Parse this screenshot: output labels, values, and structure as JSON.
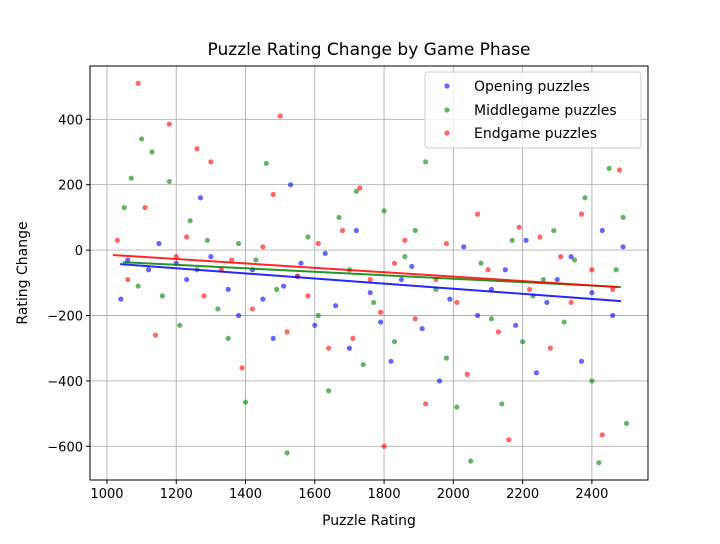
{
  "chart_data": {
    "type": "scatter",
    "title": "Puzzle Rating Change by Game Phase",
    "xlabel": "Puzzle Rating",
    "ylabel": "Rating Change",
    "xlim": [
      951,
      2562
    ],
    "ylim": [
      -703,
      563
    ],
    "xticks": [
      1000,
      1200,
      1400,
      1600,
      1800,
      2000,
      2200,
      2400
    ],
    "yticks": [
      -600,
      -400,
      -200,
      0,
      200,
      400
    ],
    "xtick_labels": [
      "1000",
      "1200",
      "1400",
      "1600",
      "1800",
      "2000",
      "2200",
      "2400"
    ],
    "ytick_labels": [
      "−600",
      "−400",
      "−200",
      "0",
      "200",
      "400"
    ],
    "grid": true,
    "legend_position": "top-right",
    "series": [
      {
        "name": "Opening puzzles",
        "color": "#0000ff",
        "points": [
          [
            1040,
            -150
          ],
          [
            1060,
            -30
          ],
          [
            1120,
            -60
          ],
          [
            1150,
            20
          ],
          [
            1200,
            -40
          ],
          [
            1230,
            -90
          ],
          [
            1270,
            160
          ],
          [
            1300,
            -20
          ],
          [
            1350,
            -120
          ],
          [
            1380,
            -200
          ],
          [
            1420,
            -60
          ],
          [
            1450,
            -150
          ],
          [
            1480,
            -270
          ],
          [
            1510,
            -110
          ],
          [
            1530,
            200
          ],
          [
            1560,
            -40
          ],
          [
            1600,
            -230
          ],
          [
            1630,
            -10
          ],
          [
            1660,
            -170
          ],
          [
            1700,
            -300
          ],
          [
            1720,
            60
          ],
          [
            1760,
            -130
          ],
          [
            1790,
            -220
          ],
          [
            1820,
            -340
          ],
          [
            1850,
            -90
          ],
          [
            1880,
            -50
          ],
          [
            1910,
            -240
          ],
          [
            1960,
            -400
          ],
          [
            1990,
            -150
          ],
          [
            2030,
            10
          ],
          [
            2070,
            -200
          ],
          [
            2110,
            -120
          ],
          [
            2150,
            -60
          ],
          [
            2180,
            -230
          ],
          [
            2210,
            30
          ],
          [
            2240,
            -375
          ],
          [
            2270,
            -160
          ],
          [
            2300,
            -90
          ],
          [
            2340,
            -20
          ],
          [
            2370,
            -340
          ],
          [
            2400,
            -130
          ],
          [
            2430,
            60
          ],
          [
            2460,
            -200
          ],
          [
            2490,
            10
          ]
        ]
      },
      {
        "name": "Middlegame puzzles",
        "color": "#008000",
        "points": [
          [
            1050,
            130
          ],
          [
            1070,
            220
          ],
          [
            1090,
            -110
          ],
          [
            1100,
            340
          ],
          [
            1130,
            300
          ],
          [
            1160,
            -140
          ],
          [
            1180,
            210
          ],
          [
            1210,
            -230
          ],
          [
            1240,
            90
          ],
          [
            1260,
            -60
          ],
          [
            1290,
            30
          ],
          [
            1320,
            -180
          ],
          [
            1350,
            -270
          ],
          [
            1380,
            20
          ],
          [
            1400,
            -465
          ],
          [
            1430,
            -30
          ],
          [
            1460,
            265
          ],
          [
            1490,
            -120
          ],
          [
            1520,
            -620
          ],
          [
            1550,
            -80
          ],
          [
            1580,
            40
          ],
          [
            1610,
            -200
          ],
          [
            1640,
            -430
          ],
          [
            1670,
            100
          ],
          [
            1700,
            -60
          ],
          [
            1720,
            180
          ],
          [
            1740,
            -350
          ],
          [
            1770,
            -160
          ],
          [
            1800,
            120
          ],
          [
            1830,
            -280
          ],
          [
            1860,
            -20
          ],
          [
            1890,
            60
          ],
          [
            1920,
            270
          ],
          [
            1950,
            -120
          ],
          [
            1980,
            -330
          ],
          [
            2010,
            -480
          ],
          [
            2050,
            -645
          ],
          [
            2080,
            -40
          ],
          [
            2110,
            -210
          ],
          [
            2140,
            -470
          ],
          [
            2170,
            30
          ],
          [
            2200,
            -280
          ],
          [
            2230,
            -140
          ],
          [
            2260,
            -90
          ],
          [
            2290,
            60
          ],
          [
            2320,
            -220
          ],
          [
            2350,
            -30
          ],
          [
            2380,
            160
          ],
          [
            2400,
            -400
          ],
          [
            2420,
            -650
          ],
          [
            2450,
            250
          ],
          [
            2470,
            -60
          ],
          [
            2500,
            -530
          ],
          [
            2490,
            100
          ]
        ]
      },
      {
        "name": "Endgame puzzles",
        "color": "#ff0000",
        "points": [
          [
            1030,
            30
          ],
          [
            1060,
            -90
          ],
          [
            1090,
            510
          ],
          [
            1110,
            130
          ],
          [
            1140,
            -260
          ],
          [
            1180,
            385
          ],
          [
            1200,
            -20
          ],
          [
            1230,
            40
          ],
          [
            1260,
            310
          ],
          [
            1280,
            -140
          ],
          [
            1300,
            270
          ],
          [
            1330,
            -60
          ],
          [
            1360,
            -30
          ],
          [
            1390,
            -360
          ],
          [
            1420,
            -180
          ],
          [
            1450,
            10
          ],
          [
            1480,
            170
          ],
          [
            1500,
            410
          ],
          [
            1520,
            -250
          ],
          [
            1550,
            -80
          ],
          [
            1580,
            -140
          ],
          [
            1610,
            20
          ],
          [
            1640,
            -300
          ],
          [
            1680,
            60
          ],
          [
            1710,
            -270
          ],
          [
            1730,
            190
          ],
          [
            1760,
            -90
          ],
          [
            1790,
            -190
          ],
          [
            1800,
            -600
          ],
          [
            1830,
            -40
          ],
          [
            1860,
            30
          ],
          [
            1890,
            -210
          ],
          [
            1920,
            -470
          ],
          [
            1950,
            -90
          ],
          [
            1980,
            20
          ],
          [
            2010,
            -160
          ],
          [
            2040,
            -380
          ],
          [
            2070,
            110
          ],
          [
            2100,
            -60
          ],
          [
            2130,
            -250
          ],
          [
            2160,
            -580
          ],
          [
            2190,
            70
          ],
          [
            2220,
            -120
          ],
          [
            2250,
            40
          ],
          [
            2280,
            -300
          ],
          [
            2310,
            -20
          ],
          [
            2340,
            -160
          ],
          [
            2370,
            110
          ],
          [
            2400,
            -60
          ],
          [
            2430,
            -565
          ],
          [
            2460,
            -120
          ],
          [
            2480,
            245
          ]
        ]
      }
    ],
    "trend_lines": [
      {
        "series": "Opening puzzles",
        "color": "#0000ff",
        "x": [
          1038,
          2484
        ],
        "y": [
          -43,
          -156
        ]
      },
      {
        "series": "Middlegame puzzles",
        "color": "#008000",
        "x": [
          1046,
          2484
        ],
        "y": [
          -37,
          -113
        ]
      },
      {
        "series": "Endgame puzzles",
        "color": "#ff0000",
        "x": [
          1017,
          2475
        ],
        "y": [
          -15,
          -113
        ]
      }
    ]
  }
}
